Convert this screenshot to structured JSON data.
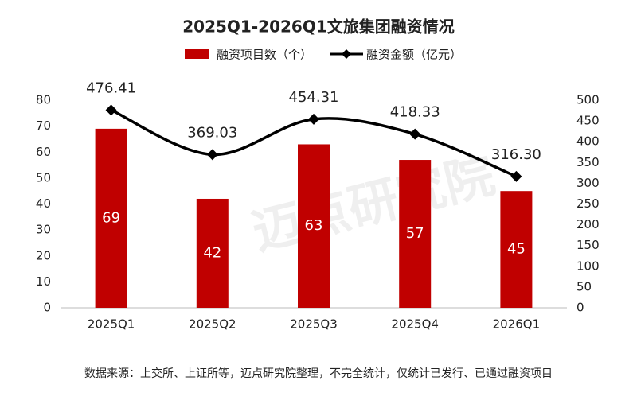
{
  "chart_data": {
    "type": "bar-line",
    "title": "2025Q1-2026Q1文旅集团融资情况",
    "categories": [
      "2025Q1",
      "2025Q2",
      "2025Q3",
      "2025Q4",
      "2026Q1"
    ],
    "series": [
      {
        "name": "融资项目数（个）",
        "type": "bar",
        "color": "#c00000",
        "values": [
          69,
          42,
          63,
          57,
          45
        ]
      },
      {
        "name": "融资金额（亿元）",
        "type": "line",
        "color": "#000000",
        "axis": "y2",
        "values": [
          476.41,
          369.03,
          454.31,
          418.33,
          316.3
        ],
        "value_labels": [
          "476.41",
          "369.03",
          "454.31",
          "418.33",
          "316.30"
        ]
      }
    ],
    "ylim": [
      0,
      80
    ],
    "yticks": [
      0,
      10,
      20,
      30,
      40,
      50,
      60,
      70,
      80
    ],
    "y2lim": [
      0,
      500
    ],
    "y2ticks": [
      0,
      50,
      100,
      150,
      200,
      250,
      300,
      350,
      400,
      450,
      500
    ],
    "watermark": "迈点研究院",
    "source": "数据来源：上交所、上证所等，迈点研究院整理，不完全统计，仅统计已发行、已通过融资项目"
  }
}
